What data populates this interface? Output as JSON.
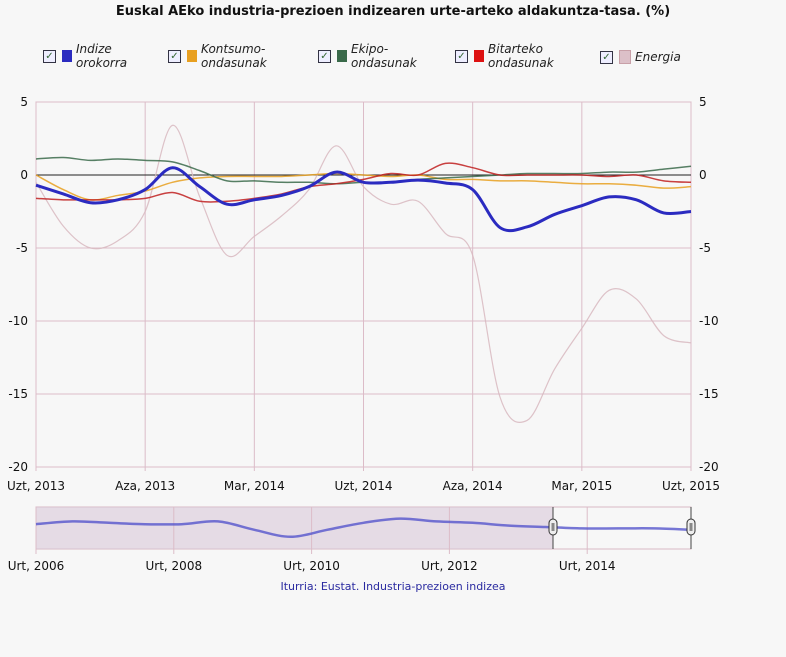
{
  "chart_data": {
    "type": "line",
    "title": "Euskal AEko industria-prezioen indizearen urte-arteko aldakuntza-tasa. (%)",
    "x_start": "2013-07",
    "x_end": "2015-07",
    "x_ticks": [
      "Uzt, 2013",
      "Aza, 2013",
      "Mar, 2014",
      "Uzt, 2014",
      "Aza, 2014",
      "Mar, 2015",
      "Uzt, 2015"
    ],
    "y_ticks": [
      5,
      0,
      -5,
      -10,
      -15,
      -20
    ],
    "ylim": [
      -20,
      5
    ],
    "grid": true,
    "legend_position": "top",
    "series": [
      {
        "name": "Indize orokorra",
        "color": "#2b2bc0",
        "width": 3,
        "checked": true,
        "values": [
          -0.7,
          -1.3,
          -1.9,
          -1.7,
          -1.0,
          0.5,
          -0.8,
          -2.0,
          -1.7,
          -1.4,
          -0.8,
          0.2,
          -0.5,
          -0.5,
          -0.35,
          -0.55,
          -1.0,
          -3.6,
          -3.55,
          -2.7,
          -2.1,
          -1.5,
          -1.7,
          -2.6,
          -2.5
        ]
      },
      {
        "name": "Kontsumo-ondasunak",
        "color": "#e8a020",
        "width": 1.5,
        "checked": true,
        "values": [
          0.0,
          -1.0,
          -1.7,
          -1.4,
          -1.1,
          -0.5,
          -0.2,
          -0.1,
          -0.1,
          -0.1,
          0.0,
          0.1,
          0.0,
          -0.1,
          0.0,
          -0.3,
          -0.3,
          -0.4,
          -0.4,
          -0.5,
          -0.6,
          -0.6,
          -0.7,
          -0.9,
          -0.8
        ]
      },
      {
        "name": "Ekipo-ondasunak",
        "color": "#3a6a4a",
        "width": 1.5,
        "checked": true,
        "values": [
          1.1,
          1.2,
          1.0,
          1.1,
          1.0,
          0.9,
          0.3,
          -0.4,
          -0.4,
          -0.5,
          -0.5,
          -0.6,
          -0.5,
          -0.5,
          -0.3,
          -0.2,
          -0.1,
          0.0,
          0.1,
          0.1,
          0.1,
          0.2,
          0.2,
          0.4,
          0.6
        ]
      },
      {
        "name": "Bitarteko ondasunak",
        "color": "#c02020",
        "width": 1.5,
        "checked": true,
        "values": [
          -1.6,
          -1.7,
          -1.7,
          -1.7,
          -1.6,
          -1.2,
          -1.8,
          -1.8,
          -1.6,
          -1.3,
          -0.8,
          -0.6,
          -0.3,
          0.1,
          0.0,
          0.8,
          0.5,
          0.0,
          0.0,
          0.0,
          0.0,
          -0.1,
          0.0,
          -0.4,
          -0.5
        ]
      },
      {
        "name": "Energia",
        "color": "#d8b8c0",
        "width": 1.2,
        "checked": true,
        "values": [
          -0.5,
          -3.5,
          -5.0,
          -4.5,
          -2.5,
          3.4,
          -1.5,
          -5.5,
          -4.2,
          -2.8,
          -1.0,
          2.0,
          -0.8,
          -2.0,
          -1.8,
          -4.0,
          -5.5,
          -15.2,
          -16.8,
          -13.3,
          -10.5,
          -7.9,
          -8.5,
          -11.0,
          -11.5
        ]
      }
    ],
    "navigator": {
      "x_ticks": [
        "Urt, 2006",
        "Urt, 2008",
        "Urt, 2010",
        "Urt, 2012",
        "Urt, 2014"
      ],
      "range_start": "2013-07",
      "range_end": "2015-07",
      "overview_start": "2006-01",
      "indize_values_semiannual": [
        2,
        4,
        3,
        2,
        2,
        4,
        -2,
        -7,
        -2,
        3,
        6,
        4,
        3,
        1,
        0,
        -1,
        -1,
        -1,
        -2
      ]
    }
  },
  "legend_items": [
    "Indize",
    "orokorra",
    "Kontsumo-",
    "ondasunak",
    "Ekipo-",
    "ondasunak",
    "Bitarteko",
    "ondasunak",
    "Energia"
  ],
  "source": "Iturria: Eustat. Industria-prezioen indizea"
}
